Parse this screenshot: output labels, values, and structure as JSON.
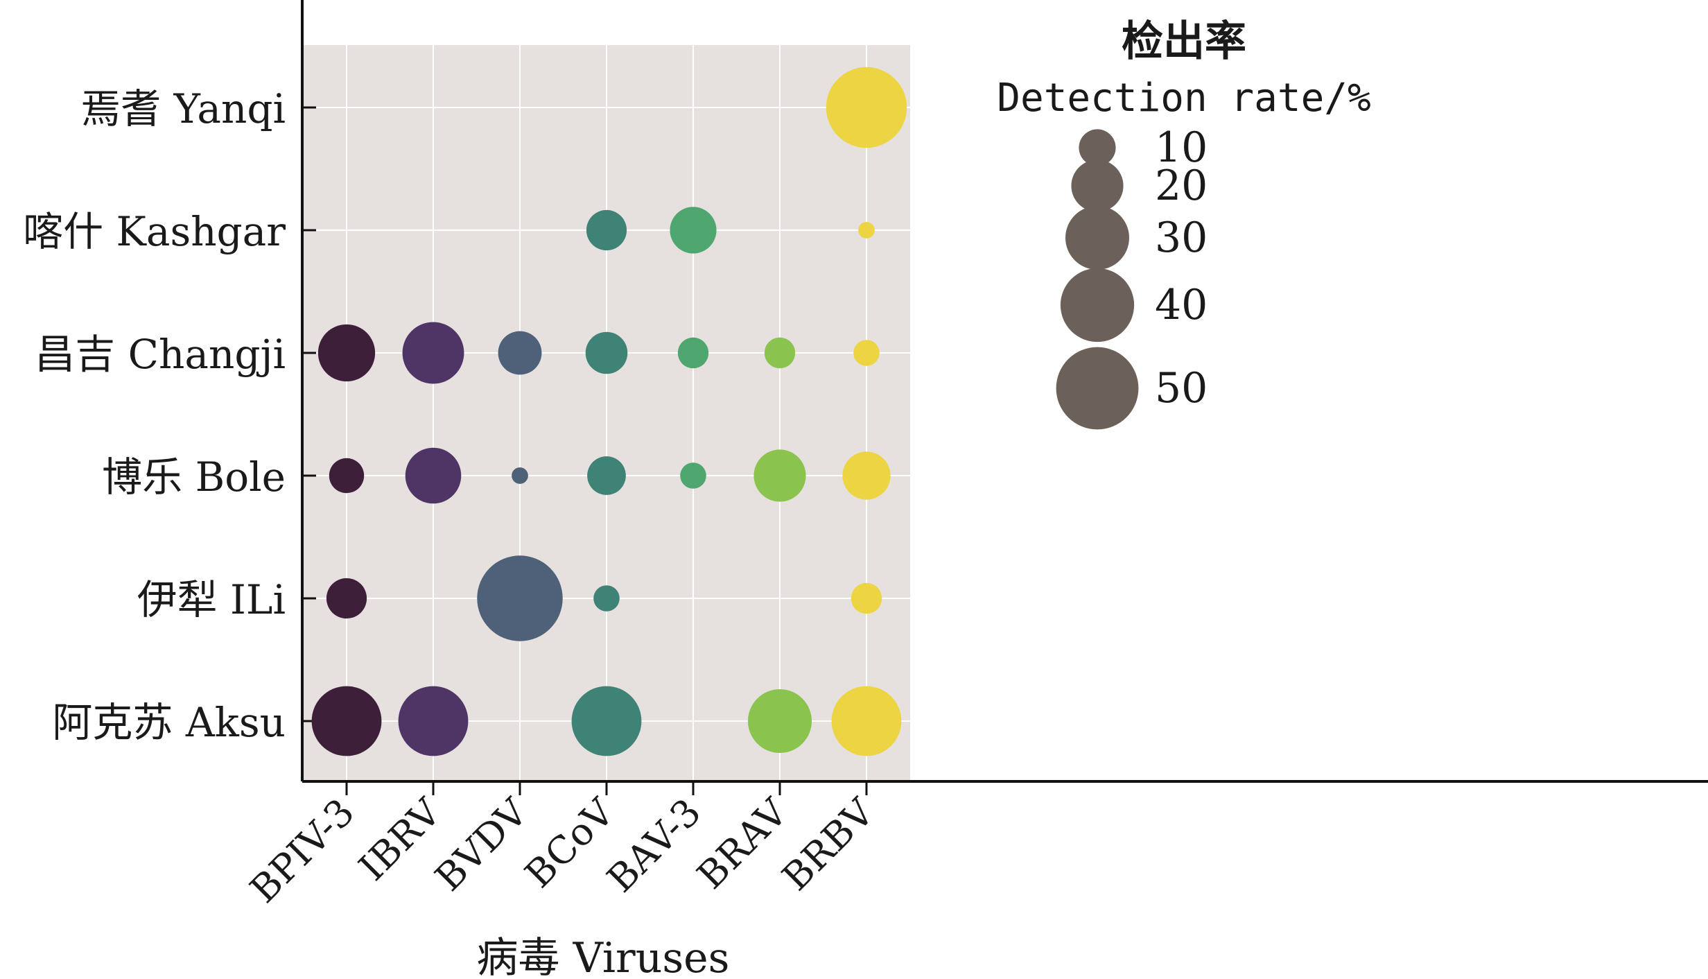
{
  "chart_data": {
    "type": "scatter",
    "encoding": "bubble",
    "xlabel": "病毒 Viruses",
    "x_categories": [
      "BPIV-3",
      "IBRV",
      "BVDV",
      "BCoV",
      "BAV-3",
      "BRAV",
      "BRBV"
    ],
    "y_categories": [
      "焉耆 Yanqi",
      "喀什 Kashgar",
      "昌吉 Changji",
      "博乐 Bole",
      "伊犁 ILi",
      "阿克苏 Aksu"
    ],
    "size_legend": {
      "title": "检出率",
      "subtitle": "Detection rate/%",
      "values": [
        10,
        20,
        30,
        40,
        50
      ],
      "labels": [
        "10",
        "20",
        "30",
        "40",
        "50"
      ],
      "color": "#6b605a"
    },
    "series_colors": {
      "BPIV-3": "#3d1f3a",
      "IBRV": "#4e3566",
      "BVDV": "#4f6079",
      "BCoV": "#3f8276",
      "BAV-3": "#4fa76f",
      "BRAV": "#8bc34f",
      "BRBV": "#ecd443"
    },
    "points": [
      {
        "region": "焉耆 Yanqi",
        "virus": "BRBV",
        "rate": 48
      },
      {
        "region": "喀什 Kashgar",
        "virus": "BCoV",
        "rate": 12
      },
      {
        "region": "喀什 Kashgar",
        "virus": "BAV-3",
        "rate": 16
      },
      {
        "region": "喀什 Kashgar",
        "virus": "BRBV",
        "rate": 2
      },
      {
        "region": "昌吉 Changji",
        "virus": "BPIV-3",
        "rate": 24
      },
      {
        "region": "昌吉 Changji",
        "virus": "IBRV",
        "rate": 28
      },
      {
        "region": "昌吉 Changji",
        "virus": "BVDV",
        "rate": 14
      },
      {
        "region": "昌吉 Changji",
        "virus": "BCoV",
        "rate": 13
      },
      {
        "region": "昌吉 Changji",
        "virus": "BAV-3",
        "rate": 7
      },
      {
        "region": "昌吉 Changji",
        "virus": "BRAV",
        "rate": 7
      },
      {
        "region": "昌吉 Changji",
        "virus": "BRBV",
        "rate": 5
      },
      {
        "region": "博乐 Bole",
        "virus": "BPIV-3",
        "rate": 9
      },
      {
        "region": "博乐 Bole",
        "virus": "IBRV",
        "rate": 23
      },
      {
        "region": "博乐 Bole",
        "virus": "BVDV",
        "rate": 2
      },
      {
        "region": "博乐 Bole",
        "virus": "BCoV",
        "rate": 11
      },
      {
        "region": "博乐 Bole",
        "virus": "BAV-3",
        "rate": 5
      },
      {
        "region": "博乐 Bole",
        "virus": "BRAV",
        "rate": 20
      },
      {
        "region": "博乐 Bole",
        "virus": "BRBV",
        "rate": 17
      },
      {
        "region": "伊犁 ILi",
        "virus": "BPIV-3",
        "rate": 12
      },
      {
        "region": "伊犁 ILi",
        "virus": "BVDV",
        "rate": 54
      },
      {
        "region": "伊犁 ILi",
        "virus": "BCoV",
        "rate": 5
      },
      {
        "region": "伊犁 ILi",
        "virus": "BRBV",
        "rate": 7
      },
      {
        "region": "阿克苏 Aksu",
        "virus": "BPIV-3",
        "rate": 36
      },
      {
        "region": "阿克苏 Aksu",
        "virus": "IBRV",
        "rate": 36
      },
      {
        "region": "阿克苏 Aksu",
        "virus": "BCoV",
        "rate": 36
      },
      {
        "region": "阿克苏 Aksu",
        "virus": "BRAV",
        "rate": 30
      },
      {
        "region": "阿克苏 Aksu",
        "virus": "BRBV",
        "rate": 36
      }
    ],
    "grid": true,
    "background": "#e6e1df",
    "legend_position": "right"
  }
}
